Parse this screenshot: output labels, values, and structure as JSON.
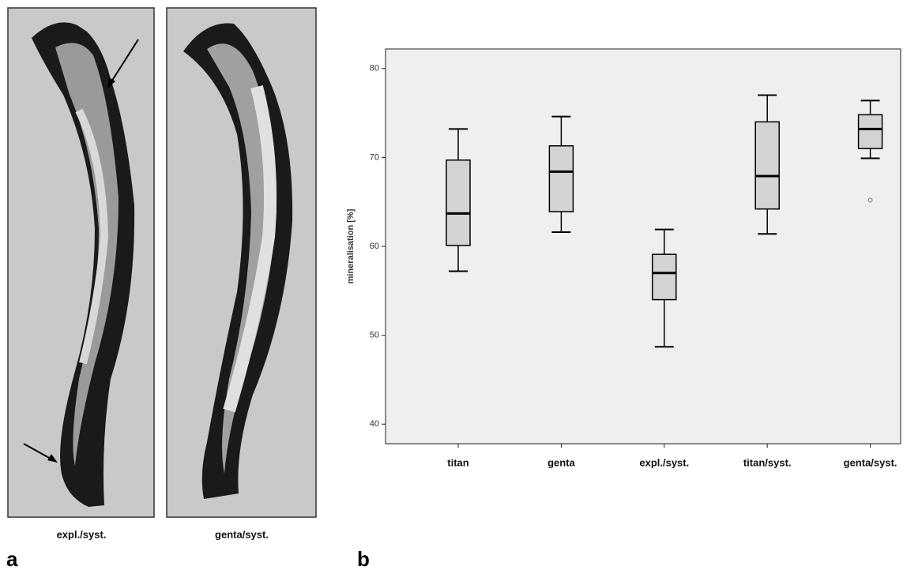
{
  "panel_a": {
    "letter": "a",
    "images": [
      {
        "label": "expl./syst."
      },
      {
        "label": "genta/syst."
      }
    ]
  },
  "panel_b": {
    "letter": "b"
  },
  "chart_data": {
    "type": "box",
    "y_label": "mineralisation [%]",
    "categories": [
      "titan",
      "genta",
      "expl./syst.",
      "titan/syst.",
      "genta/syst."
    ],
    "boxes": [
      {
        "whisker_low": 57.2,
        "q1": 60.1,
        "median": 63.7,
        "q3": 69.7,
        "whisker_high": 73.2
      },
      {
        "whisker_low": 61.6,
        "q1": 63.9,
        "median": 68.4,
        "q3": 71.3,
        "whisker_high": 74.6
      },
      {
        "whisker_low": 48.7,
        "q1": 54.0,
        "median": 57.0,
        "q3": 59.1,
        "whisker_high": 61.9
      },
      {
        "whisker_low": 61.4,
        "q1": 64.2,
        "median": 67.9,
        "q3": 74.0,
        "whisker_high": 77.0
      },
      {
        "whisker_low": 69.9,
        "q1": 71.0,
        "median": 73.2,
        "q3": 74.8,
        "whisker_high": 76.4,
        "outliers": [
          65.2
        ]
      }
    ],
    "ylim": [
      37.8,
      82.2
    ],
    "yticks": [
      40,
      50,
      60,
      70,
      80
    ],
    "box_color": "#d3d3d3",
    "plot_background": "#efefef"
  }
}
